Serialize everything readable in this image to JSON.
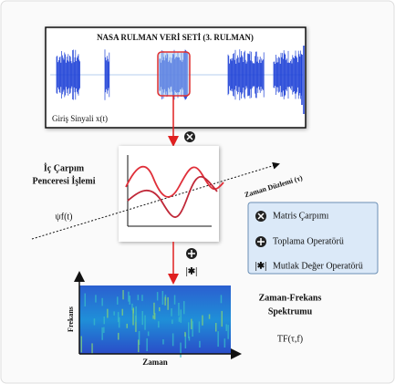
{
  "signal_panel": {
    "title": "NASA RULMAN VERİ SETİ (3. RULMAN)",
    "input_label": "Giriş Sinyali x(t)"
  },
  "window_step": {
    "title_lines": [
      "İç Çarpım",
      "Penceresi İşlemi"
    ],
    "wavelet_label": "ψf(t)",
    "time_plane_label": "Zaman Düzlemi (τ)"
  },
  "operators": {
    "abs_symbol": "|✱|"
  },
  "legend": {
    "items": [
      "Matris Çarpımı",
      "Toplama Operatörü",
      "Mutlak Değer Operatörü"
    ]
  },
  "spectrum": {
    "y_axis_label": "Frekans",
    "x_axis_label": "Zaman",
    "title_lines": [
      "Zaman-Frekans",
      "Spektrumu"
    ],
    "formula": "TF(τ,f)"
  }
}
